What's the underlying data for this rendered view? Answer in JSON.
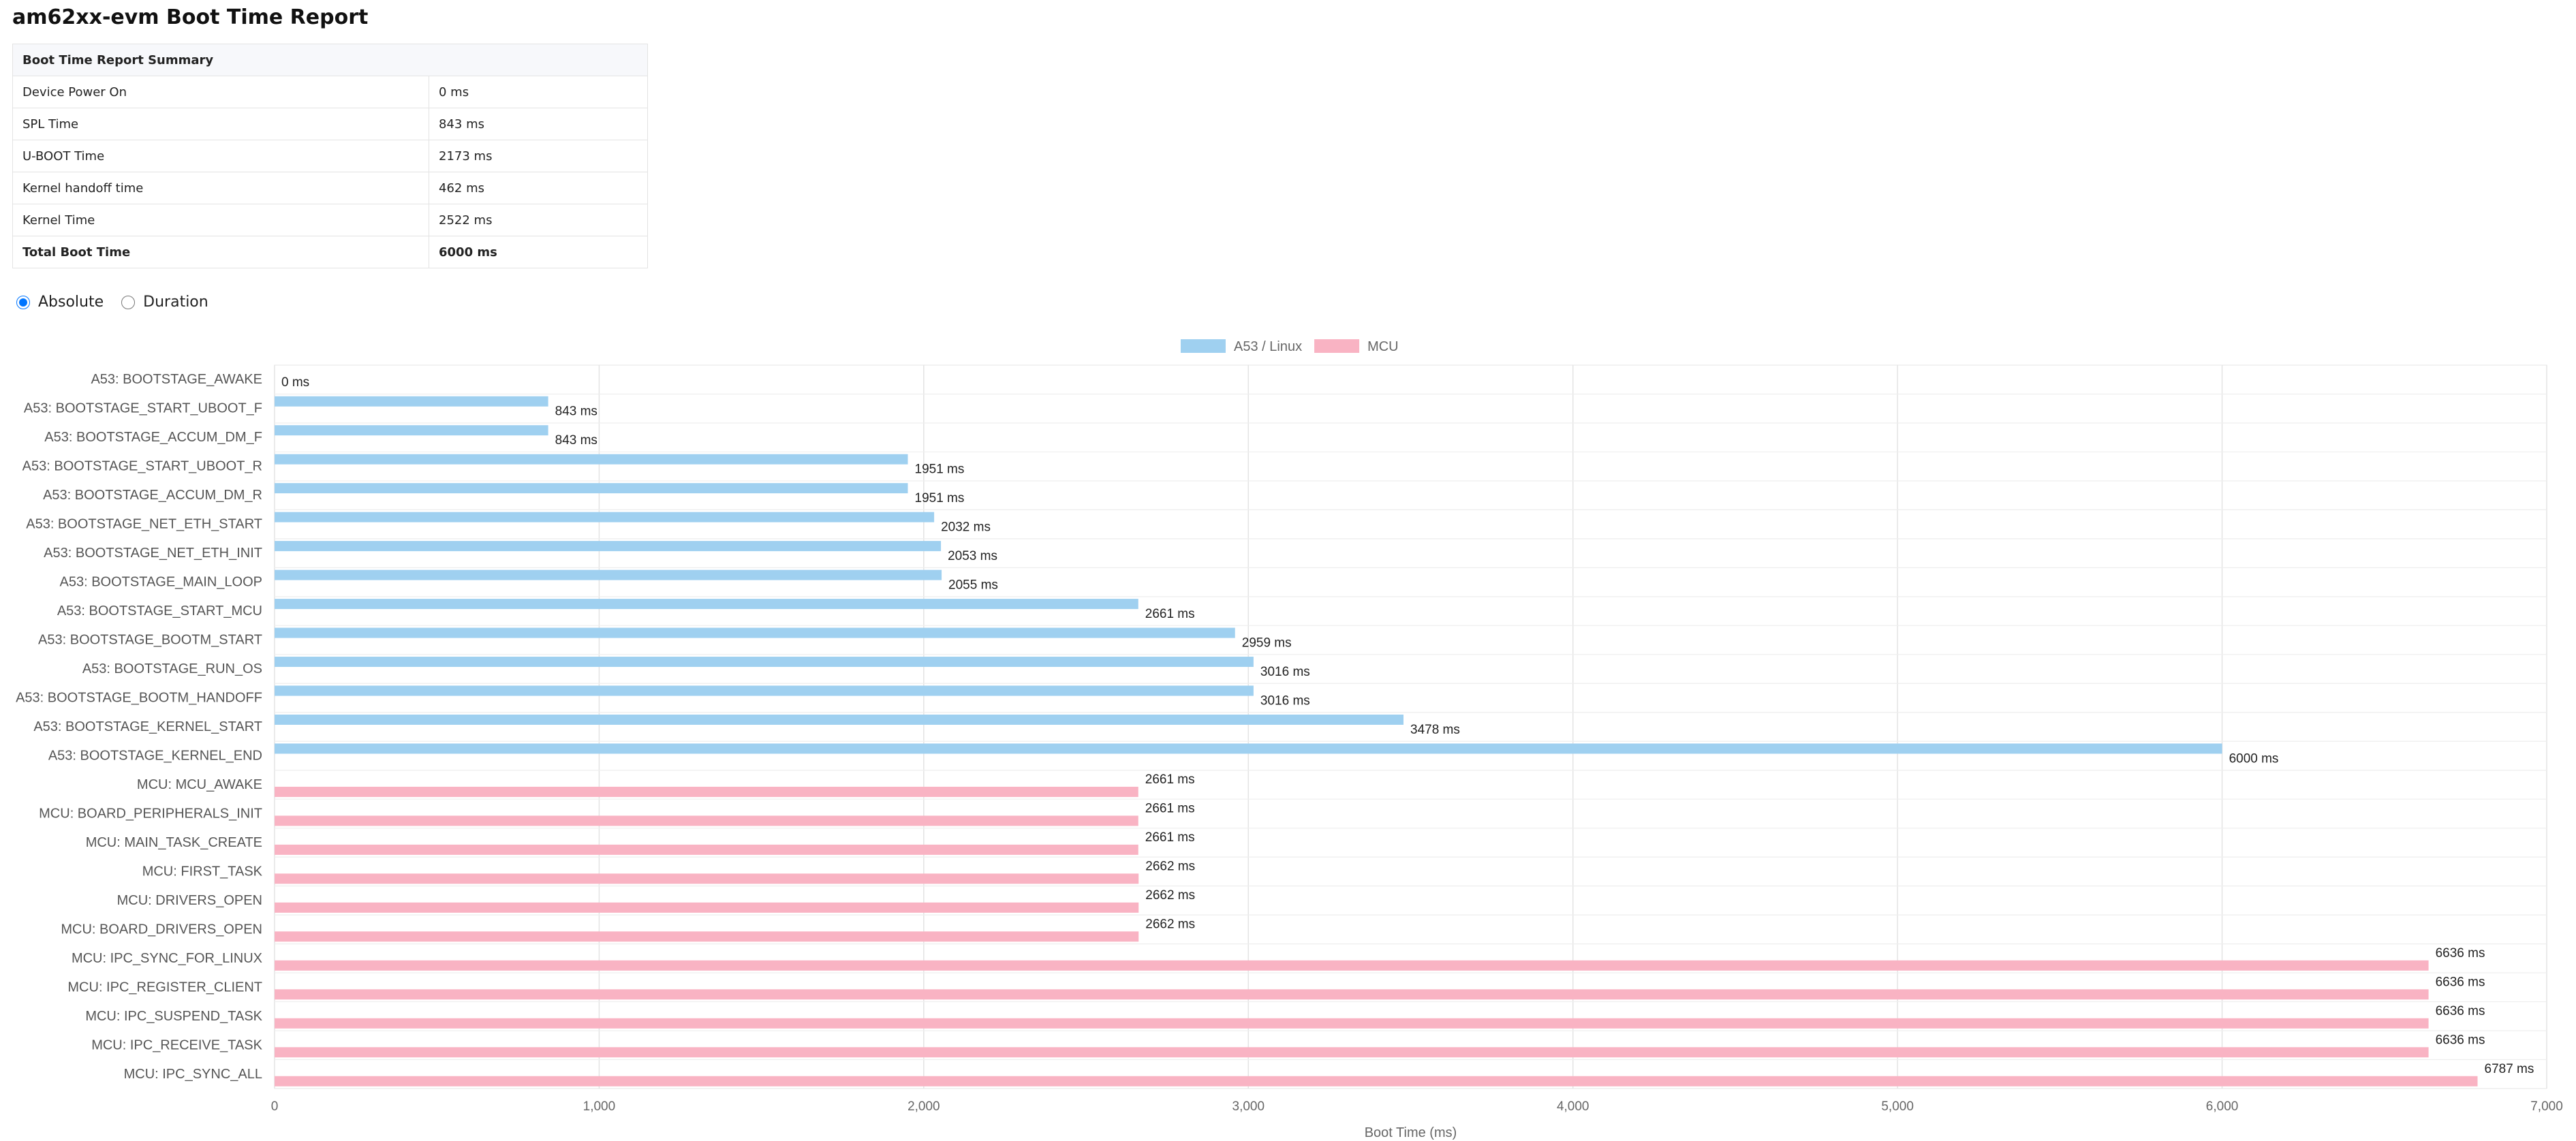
{
  "page": {
    "title": "am62xx-evm Boot Time Report"
  },
  "summary": {
    "header": "Boot Time Report Summary",
    "rows": [
      {
        "label": "Device Power On",
        "value": "0 ms"
      },
      {
        "label": "SPL Time",
        "value": "843 ms"
      },
      {
        "label": "U-BOOT Time",
        "value": "2173 ms"
      },
      {
        "label": "Kernel handoff time",
        "value": "462 ms"
      },
      {
        "label": "Kernel Time",
        "value": "2522 ms"
      }
    ],
    "total": {
      "label": "Total Boot Time",
      "value": "6000 ms"
    }
  },
  "view_mode": {
    "options": [
      {
        "label": "Absolute",
        "checked": true
      },
      {
        "label": "Duration",
        "checked": false
      }
    ]
  },
  "chart_data": {
    "type": "bar",
    "orientation": "horizontal",
    "xlabel": "Boot Time (ms)",
    "xlim": [
      0,
      7000
    ],
    "xticks": [
      "0",
      "1,000",
      "2,000",
      "3,000",
      "4,000",
      "5,000",
      "6,000",
      "7,000"
    ],
    "value_suffix": " ms",
    "grid": true,
    "legend_position": "top-center",
    "series": [
      {
        "name": "A53 / Linux",
        "color": "#9fd0f0",
        "categories": [
          "A53: BOOTSTAGE_AWAKE",
          "A53: BOOTSTAGE_START_UBOOT_F",
          "A53: BOOTSTAGE_ACCUM_DM_F",
          "A53: BOOTSTAGE_START_UBOOT_R",
          "A53: BOOTSTAGE_ACCUM_DM_R",
          "A53: BOOTSTAGE_NET_ETH_START",
          "A53: BOOTSTAGE_NET_ETH_INIT",
          "A53: BOOTSTAGE_MAIN_LOOP",
          "A53: BOOTSTAGE_START_MCU",
          "A53: BOOTSTAGE_BOOTM_START",
          "A53: BOOTSTAGE_RUN_OS",
          "A53: BOOTSTAGE_BOOTM_HANDOFF",
          "A53: BOOTSTAGE_KERNEL_START",
          "A53: BOOTSTAGE_KERNEL_END"
        ],
        "values": [
          0,
          843,
          843,
          1951,
          1951,
          2032,
          2053,
          2055,
          2661,
          2959,
          3016,
          3016,
          3478,
          6000
        ]
      },
      {
        "name": "MCU",
        "color": "#f9b3c3",
        "categories": [
          "MCU: MCU_AWAKE",
          "MCU: BOARD_PERIPHERALS_INIT",
          "MCU: MAIN_TASK_CREATE",
          "MCU: FIRST_TASK",
          "MCU: DRIVERS_OPEN",
          "MCU: BOARD_DRIVERS_OPEN",
          "MCU: IPC_SYNC_FOR_LINUX",
          "MCU: IPC_REGISTER_CLIENT",
          "MCU: IPC_SUSPEND_TASK",
          "MCU: IPC_RECEIVE_TASK",
          "MCU: IPC_SYNC_ALL"
        ],
        "values": [
          2661,
          2661,
          2661,
          2662,
          2662,
          2662,
          6636,
          6636,
          6636,
          6636,
          6787
        ]
      }
    ]
  }
}
